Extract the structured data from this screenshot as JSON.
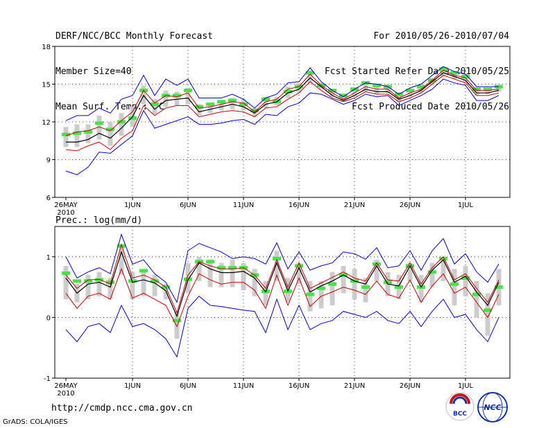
{
  "header": {
    "title": "DERF/NCC/BCC Monthly Forecast",
    "member": "Member Size=40",
    "variable": "Mean Surf. Temp.: °C",
    "period": "For 2010/05/26-2010/07/04",
    "started": "Fcst Started Refer Date 2010/05/25",
    "produced": "Fcst Produced Date 2010/05/26"
  },
  "prec_label": "Prec.: log(mm/d)",
  "url": "http://cmdp.ncc.cma.gov.cn",
  "footer": "GrADS: COLA/IGES",
  "logos": {
    "bcc": "BCC",
    "ncc": "NCC"
  },
  "colors": {
    "envelope": "#0000cc",
    "percentile": "#cc0000",
    "mean": "#000000",
    "member": "#44e644",
    "spread": "#cccccc",
    "grid": "#000000"
  },
  "chart_data": [
    {
      "type": "line",
      "title": "Mean Surf. Temp.: °C",
      "x": [
        "26MAY",
        "27MAY",
        "28MAY",
        "29MAY",
        "30MAY",
        "31MAY",
        "1JUN",
        "2JUN",
        "3JUN",
        "4JUN",
        "5JUN",
        "6JUN",
        "7JUN",
        "8JUN",
        "9JUN",
        "10JUN",
        "11JUN",
        "12JUN",
        "13JUN",
        "14JUN",
        "15JUN",
        "16JUN",
        "17JUN",
        "18JUN",
        "19JUN",
        "20JUN",
        "21JUN",
        "22JUN",
        "23JUN",
        "24JUN",
        "25JUN",
        "26JUN",
        "27JUN",
        "28JUN",
        "29JUN",
        "30JUN",
        "1JUL",
        "2JUL",
        "3JUL",
        "4JUL"
      ],
      "xticks": [
        "26MAY",
        "1JUN",
        "6JUN",
        "11JUN",
        "16JUN",
        "21JUN",
        "26JUN",
        "1JUL"
      ],
      "year_label": "2010",
      "ylim": [
        6,
        18
      ],
      "yticks": [
        "6",
        "9",
        "12",
        "15",
        "18"
      ],
      "series": [
        {
          "name": "max",
          "values": [
            12.1,
            12.5,
            12.5,
            13.1,
            12.7,
            13.8,
            14.1,
            15.7,
            14.1,
            15.4,
            14.9,
            15.4,
            13.9,
            13.9,
            13.9,
            14.2,
            13.8,
            13.1,
            13.9,
            14.2,
            15.1,
            15.2,
            16.3,
            15.2,
            14.5,
            14.0,
            14.6,
            15.1,
            15.0,
            14.8,
            14.2,
            14.7,
            15.0,
            15.7,
            16.4,
            16.0,
            15.8,
            14.8,
            14.8,
            14.8
          ]
        },
        {
          "name": "upper",
          "values": [
            10.9,
            11.2,
            11.3,
            11.6,
            11.3,
            12.1,
            12.8,
            14.5,
            13.5,
            14.1,
            14.0,
            14.3,
            13.1,
            13.2,
            13.4,
            13.6,
            13.5,
            12.8,
            13.6,
            13.8,
            14.6,
            14.8,
            15.8,
            14.9,
            14.3,
            13.8,
            14.3,
            14.8,
            14.6,
            14.6,
            13.9,
            14.3,
            14.6,
            15.3,
            16.1,
            15.7,
            15.5,
            14.5,
            14.5,
            14.6
          ]
        },
        {
          "name": "mean",
          "values": [
            10.4,
            10.4,
            10.6,
            11.1,
            10.7,
            11.5,
            12.4,
            14.1,
            13.0,
            13.7,
            13.8,
            13.9,
            12.8,
            13.0,
            13.2,
            13.4,
            13.2,
            12.7,
            13.4,
            13.6,
            14.3,
            14.6,
            15.5,
            14.8,
            14.1,
            13.7,
            14.1,
            14.6,
            14.4,
            14.4,
            13.8,
            14.1,
            14.5,
            15.2,
            15.9,
            15.6,
            15.3,
            14.3,
            14.3,
            14.5
          ]
        },
        {
          "name": "lower",
          "values": [
            9.8,
            9.7,
            10.1,
            10.4,
            9.8,
            10.7,
            11.3,
            13.3,
            12.5,
            13.1,
            13.3,
            13.3,
            12.4,
            12.6,
            12.8,
            12.9,
            12.8,
            12.4,
            13.1,
            13.2,
            13.8,
            14.3,
            15.2,
            14.5,
            13.9,
            13.6,
            13.9,
            14.4,
            14.2,
            14.2,
            13.6,
            13.9,
            14.3,
            15.0,
            15.7,
            15.4,
            15.1,
            14.1,
            14.1,
            14.3
          ]
        },
        {
          "name": "min",
          "values": [
            8.1,
            7.8,
            8.4,
            9.6,
            9.5,
            10.2,
            10.9,
            12.9,
            11.5,
            11.8,
            12.1,
            12.4,
            11.8,
            11.8,
            11.9,
            12.1,
            12.2,
            11.8,
            12.6,
            12.5,
            13.2,
            13.5,
            14.3,
            14.2,
            13.8,
            13.4,
            13.7,
            14.2,
            14.0,
            14.1,
            13.3,
            13.7,
            14.1,
            14.6,
            15.4,
            15.1,
            14.9,
            13.7,
            13.7,
            14.1
          ]
        },
        {
          "name": "best",
          "values": [
            11.0,
            11.1,
            11.2,
            11.9,
            11.4,
            12.0,
            12.3,
            14.5,
            13.4,
            14.1,
            14.1,
            14.5,
            13.2,
            13.4,
            13.6,
            13.7,
            13.4,
            12.9,
            13.8,
            13.6,
            14.4,
            14.8,
            15.9,
            14.9,
            14.5,
            14.1,
            14.6,
            15.1,
            14.9,
            14.8,
            14.2,
            14.5,
            14.8,
            15.3,
            16.2,
            15.9,
            15.6,
            14.6,
            14.6,
            14.8
          ]
        },
        {
          "name": "box_low",
          "values": [
            10.0,
            10.0,
            10.3,
            10.6,
            10.1,
            10.9,
            11.6,
            13.4,
            12.6,
            13.2,
            13.3,
            13.4,
            12.5,
            12.7,
            12.9,
            13.0,
            12.9,
            12.4,
            13.1,
            13.3,
            13.9,
            14.3,
            15.1,
            14.6,
            14.0,
            13.6,
            14.0,
            14.4,
            14.2,
            14.3,
            13.6,
            14.0,
            14.3,
            14.9,
            15.6,
            15.4,
            15.1,
            14.1,
            14.2,
            14.4
          ]
        },
        {
          "name": "box_high",
          "values": [
            11.6,
            11.8,
            11.8,
            12.5,
            12.0,
            12.7,
            13.2,
            14.9,
            13.8,
            14.5,
            14.4,
            14.7,
            13.4,
            13.5,
            13.7,
            13.9,
            13.8,
            13.1,
            14.0,
            14.0,
            14.8,
            15.1,
            16.1,
            15.1,
            14.6,
            14.1,
            14.6,
            15.2,
            14.9,
            15.0,
            14.2,
            14.5,
            14.9,
            15.5,
            16.4,
            15.9,
            15.8,
            14.7,
            14.7,
            14.9
          ]
        }
      ]
    },
    {
      "type": "line",
      "title": "Prec.: log(mm/d)",
      "x": [
        "26MAY",
        "27MAY",
        "28MAY",
        "29MAY",
        "30MAY",
        "31MAY",
        "1JUN",
        "2JUN",
        "3JUN",
        "4JUN",
        "5JUN",
        "6JUN",
        "7JUN",
        "8JUN",
        "9JUN",
        "10JUN",
        "11JUN",
        "12JUN",
        "13JUN",
        "14JUN",
        "15JUN",
        "16JUN",
        "17JUN",
        "18JUN",
        "19JUN",
        "20JUN",
        "21JUN",
        "22JUN",
        "23JUN",
        "24JUN",
        "25JUN",
        "26JUN",
        "27JUN",
        "28JUN",
        "29JUN",
        "30JUN",
        "1JUL",
        "2JUL",
        "3JUL",
        "4JUL"
      ],
      "xticks": [
        "26MAY",
        "1JUN",
        "6JUN",
        "11JUN",
        "16JUN",
        "21JUN",
        "26JUN",
        "1JUL"
      ],
      "year_label": "2010",
      "ylim": [
        -1,
        1.5
      ],
      "yticks": [
        "-1",
        "0",
        "1"
      ],
      "series": [
        {
          "name": "max",
          "values": [
            1.0,
            0.65,
            0.75,
            0.82,
            0.72,
            1.37,
            0.88,
            0.95,
            0.72,
            0.58,
            0.25,
            1.1,
            1.22,
            1.15,
            1.08,
            0.97,
            1.0,
            0.97,
            0.88,
            1.23,
            0.8,
            1.08,
            0.78,
            0.85,
            0.9,
            1.08,
            1.05,
            0.96,
            1.15,
            0.82,
            0.85,
            1.1,
            0.78,
            1.1,
            1.3,
            0.88,
            1.05,
            0.75,
            0.58,
            0.88
          ]
        },
        {
          "name": "upper",
          "values": [
            0.7,
            0.48,
            0.62,
            0.63,
            0.55,
            1.2,
            0.65,
            0.7,
            0.62,
            0.5,
            0.08,
            0.7,
            0.92,
            0.85,
            0.8,
            0.8,
            0.82,
            0.7,
            0.48,
            0.95,
            0.5,
            0.9,
            0.48,
            0.57,
            0.66,
            0.75,
            0.65,
            0.6,
            0.9,
            0.62,
            0.6,
            0.9,
            0.55,
            0.82,
            1.0,
            0.62,
            0.72,
            0.48,
            0.25,
            0.62
          ]
        },
        {
          "name": "mean",
          "values": [
            0.65,
            0.4,
            0.55,
            0.58,
            0.5,
            1.08,
            0.58,
            0.62,
            0.57,
            0.44,
            0.02,
            0.62,
            0.9,
            0.8,
            0.74,
            0.74,
            0.76,
            0.65,
            0.42,
            0.9,
            0.44,
            0.82,
            0.42,
            0.52,
            0.6,
            0.7,
            0.6,
            0.55,
            0.85,
            0.55,
            0.52,
            0.85,
            0.5,
            0.78,
            0.95,
            0.58,
            0.68,
            0.42,
            0.2,
            0.58
          ]
        },
        {
          "name": "lower",
          "values": [
            0.4,
            0.15,
            0.35,
            0.4,
            0.3,
            0.8,
            0.32,
            0.4,
            0.3,
            0.2,
            -0.15,
            0.35,
            0.72,
            0.62,
            0.55,
            0.58,
            0.58,
            0.45,
            0.15,
            0.7,
            0.2,
            0.65,
            0.18,
            0.35,
            0.42,
            0.5,
            0.45,
            0.38,
            0.6,
            0.38,
            0.32,
            0.62,
            0.25,
            0.52,
            0.72,
            0.4,
            0.5,
            0.25,
            0.0,
            0.38
          ]
        },
        {
          "name": "min",
          "values": [
            -0.2,
            -0.4,
            -0.15,
            -0.1,
            -0.25,
            0.2,
            -0.15,
            -0.1,
            -0.2,
            -0.35,
            -0.65,
            0.15,
            0.35,
            0.2,
            0.18,
            0.15,
            0.12,
            0.1,
            -0.25,
            0.3,
            -0.2,
            0.2,
            -0.2,
            -0.1,
            -0.05,
            0.1,
            0.05,
            0.0,
            0.1,
            -0.05,
            -0.1,
            0.1,
            -0.15,
            0.1,
            0.3,
            0.0,
            0.05,
            -0.2,
            -0.4,
            0.0
          ]
        },
        {
          "name": "best",
          "values": [
            0.73,
            0.6,
            0.6,
            0.62,
            0.58,
            1.18,
            0.6,
            0.77,
            0.6,
            0.5,
            -0.05,
            0.63,
            0.92,
            0.92,
            0.82,
            0.82,
            0.82,
            0.7,
            0.43,
            0.97,
            0.43,
            0.85,
            0.38,
            0.48,
            0.55,
            0.7,
            0.6,
            0.5,
            0.88,
            0.58,
            0.5,
            0.85,
            0.5,
            0.75,
            0.97,
            0.55,
            0.65,
            0.38,
            0.12,
            0.5
          ]
        },
        {
          "name": "box_low",
          "values": [
            0.3,
            0.25,
            0.3,
            0.35,
            0.3,
            0.7,
            0.3,
            0.35,
            0.35,
            0.3,
            -0.35,
            0.4,
            0.6,
            0.5,
            0.5,
            0.5,
            0.45,
            0.35,
            0.2,
            0.6,
            0.25,
            0.55,
            0.1,
            0.15,
            0.2,
            0.4,
            0.3,
            0.25,
            0.6,
            0.35,
            0.3,
            0.6,
            0.25,
            0.5,
            0.6,
            0.2,
            0.35,
            0.0,
            -0.3,
            0.2
          ]
        },
        {
          "name": "box_high",
          "values": [
            0.85,
            0.55,
            0.7,
            0.75,
            0.65,
            1.2,
            0.75,
            0.8,
            0.7,
            0.55,
            0.1,
            0.9,
            1.0,
            0.95,
            0.9,
            0.95,
            0.9,
            0.8,
            0.6,
            1.1,
            0.65,
            0.9,
            0.6,
            0.6,
            0.75,
            0.85,
            0.8,
            0.65,
            0.95,
            0.75,
            0.7,
            0.9,
            0.7,
            0.9,
            1.0,
            0.8,
            0.85,
            0.6,
            0.4,
            0.8
          ]
        }
      ]
    }
  ]
}
